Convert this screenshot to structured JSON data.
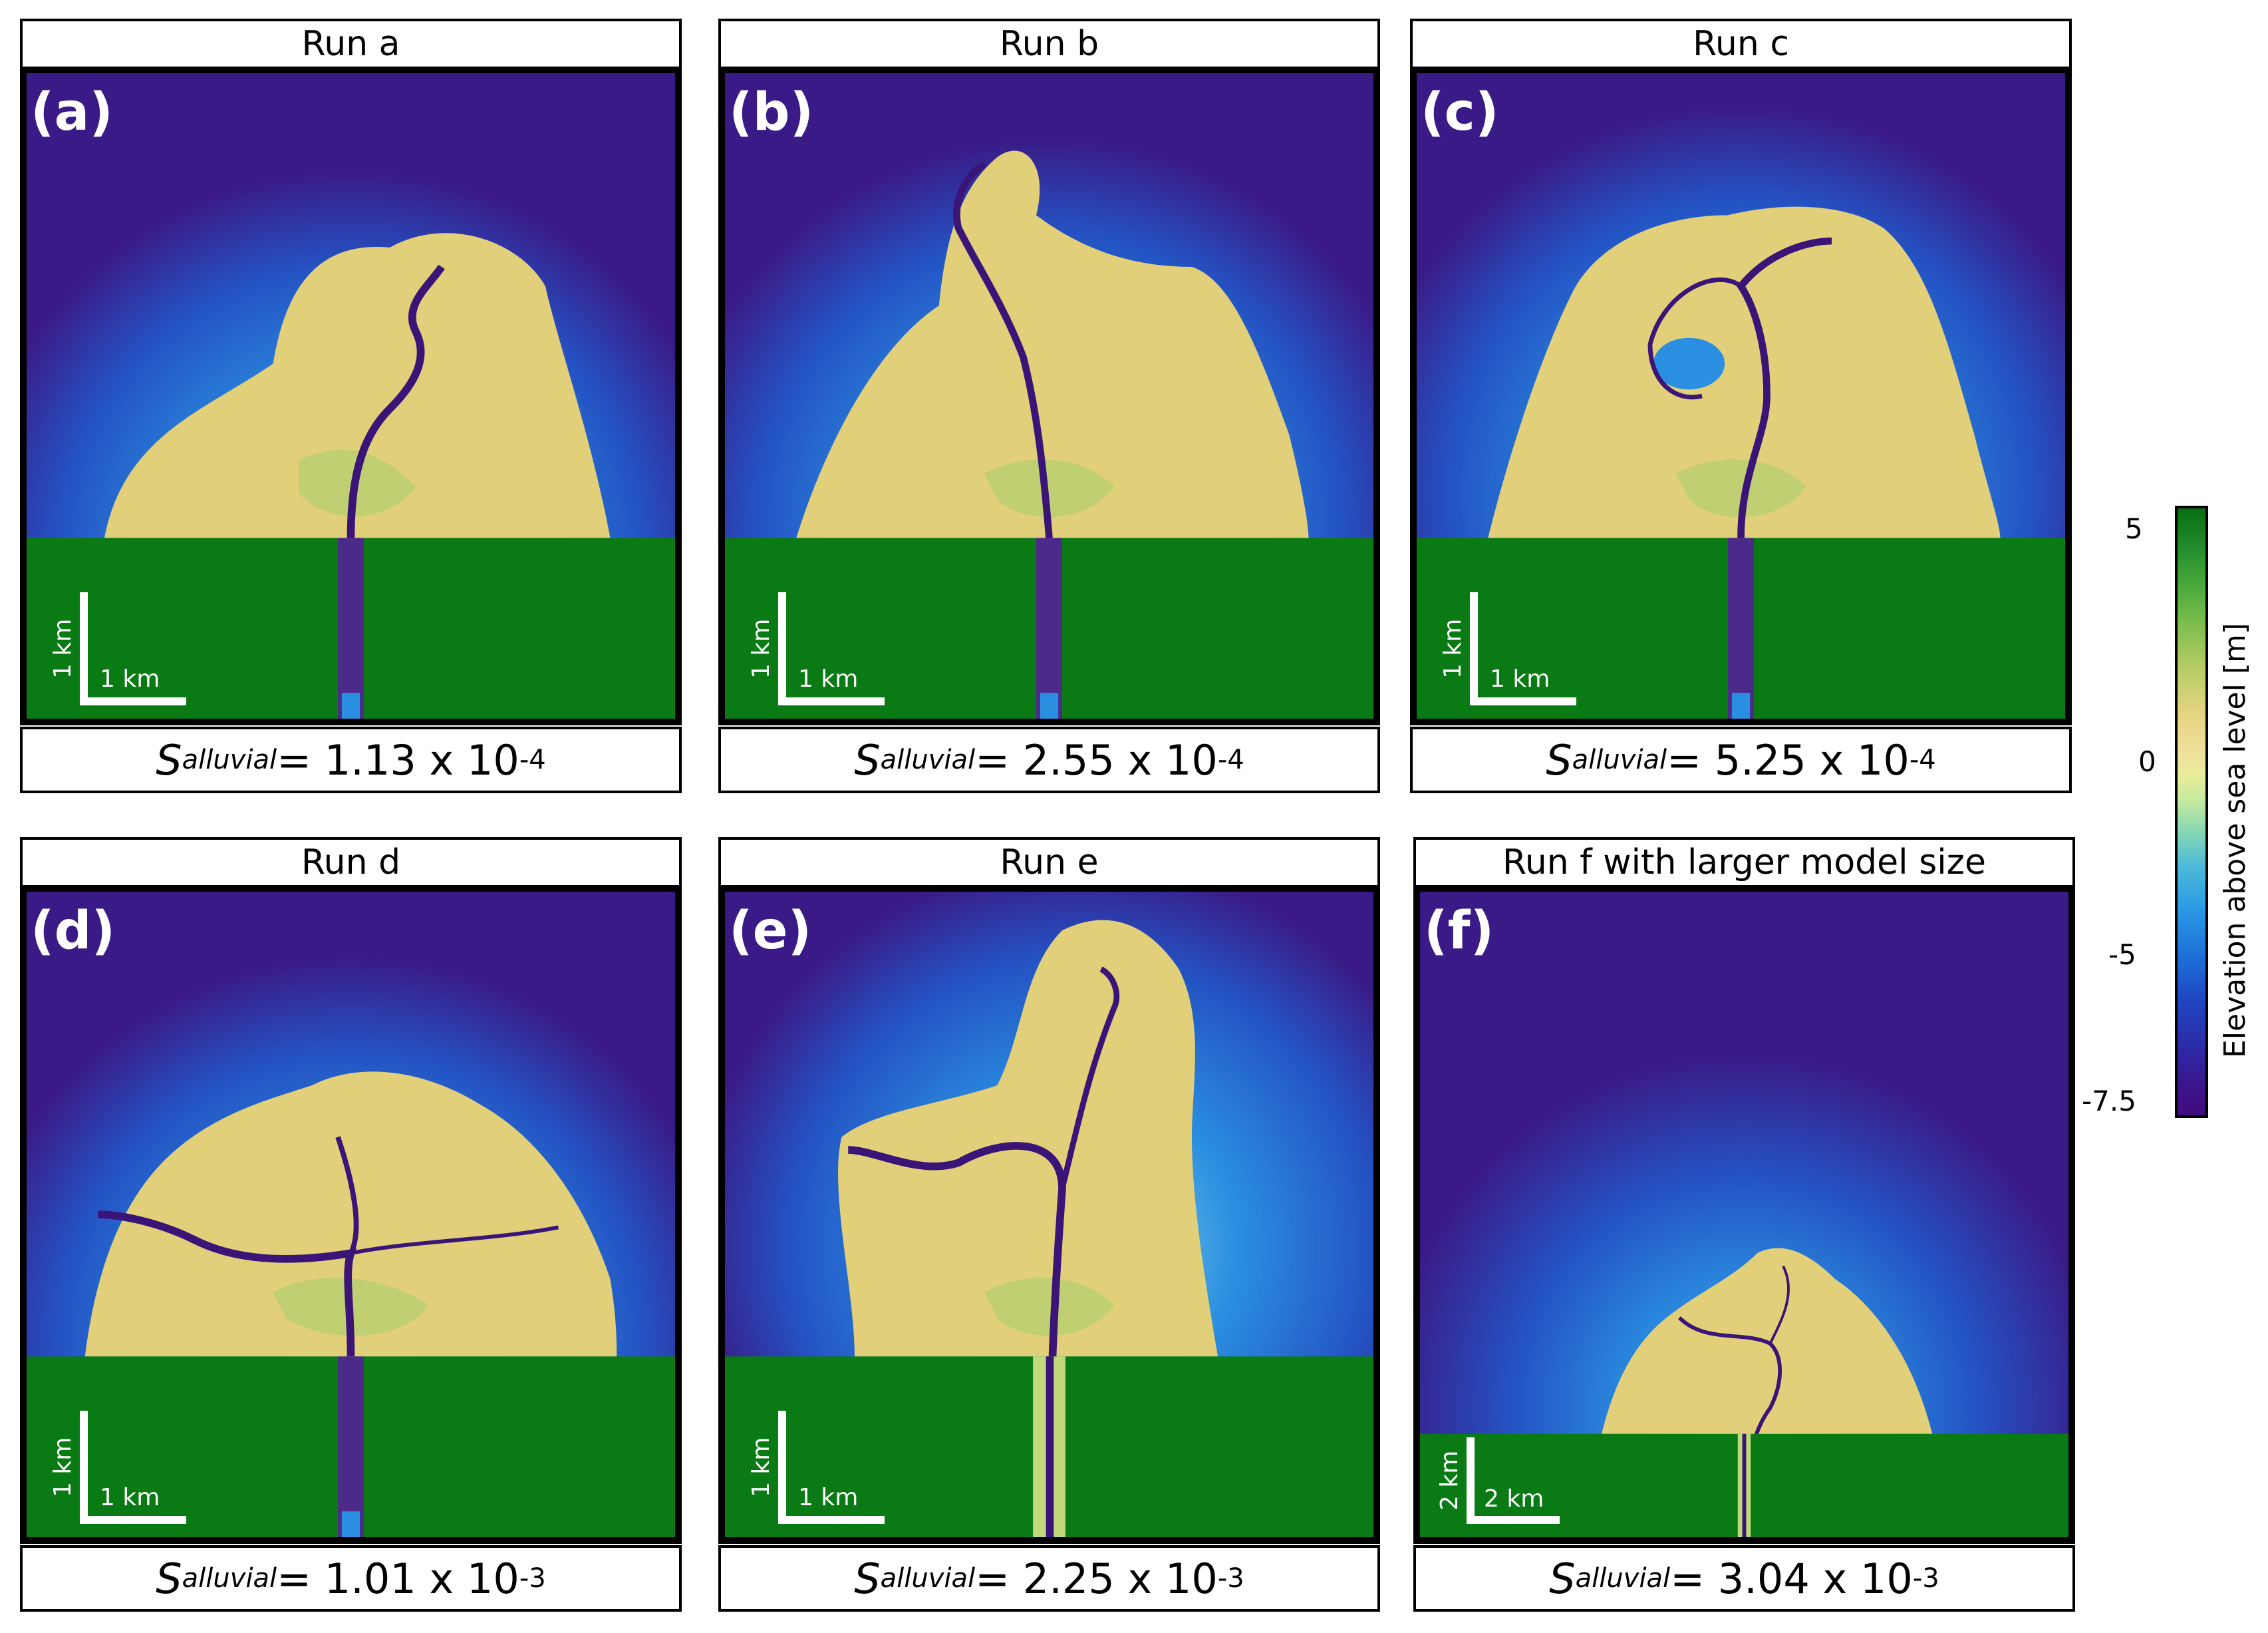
{
  "panels": [
    {
      "title": "Run a",
      "letter": "(a)",
      "slope_symbol": "S",
      "slope_sub": "alluvial",
      "slope_eq": " = 1.13 x 10",
      "slope_exp": "-4",
      "scale_v": "1 km",
      "scale_h": "1 km"
    },
    {
      "title": "Run b",
      "letter": "(b)",
      "slope_symbol": "S",
      "slope_sub": "alluvial",
      "slope_eq": " = 2.55 x 10",
      "slope_exp": "-4",
      "scale_v": "1 km",
      "scale_h": "1 km"
    },
    {
      "title": "Run c",
      "letter": "(c)",
      "slope_symbol": "S",
      "slope_sub": "alluvial",
      "slope_eq": " = 5.25 x 10",
      "slope_exp": "-4",
      "scale_v": "1 km",
      "scale_h": "1 km"
    },
    {
      "title": "Run d",
      "letter": "(d)",
      "slope_symbol": "S",
      "slope_sub": "alluvial",
      "slope_eq": " = 1.01 x 10",
      "slope_exp": "-3",
      "scale_v": "1 km",
      "scale_h": "1 km"
    },
    {
      "title": "Run e",
      "letter": "(e)",
      "slope_symbol": "S",
      "slope_sub": "alluvial",
      "slope_eq": " = 2.25 x 10",
      "slope_exp": "-3",
      "scale_v": "1 km",
      "scale_h": "1 km"
    },
    {
      "title": "Run f with larger model size",
      "letter": "(f)",
      "slope_symbol": "S",
      "slope_sub": "alluvial",
      "slope_eq": " = 3.04 x 10",
      "slope_exp": "-3",
      "scale_v": "2 km",
      "scale_h": "2 km"
    }
  ],
  "colorbar": {
    "label": "Elevation above sea level [m]",
    "ticks": [
      "5",
      "0",
      "-5",
      "-7.5"
    ]
  },
  "colors": {
    "land": "#0a7a14",
    "deep_water": "#3a1a86",
    "shallow_water": "#2a8fe0",
    "delta_top": "#e2cf7a",
    "channel": "#3b1478"
  }
}
